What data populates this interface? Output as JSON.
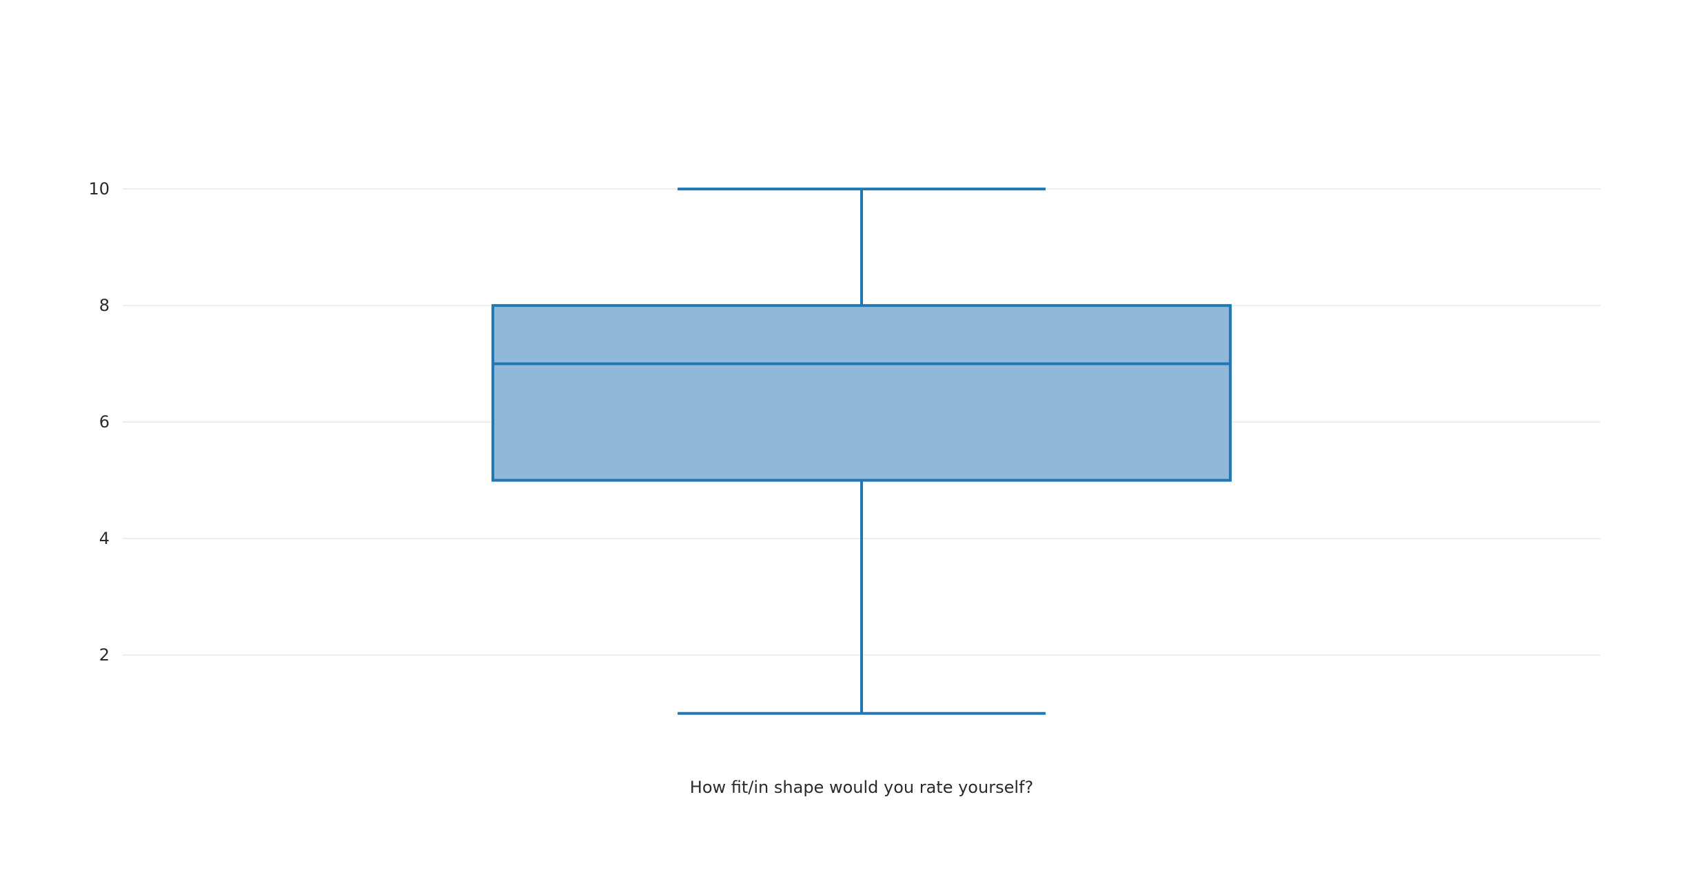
{
  "chart_data": {
    "type": "box",
    "title": "",
    "xlabel": "",
    "ylabel": "",
    "categories": [
      "How fit/in shape would you rate yourself?"
    ],
    "series": [
      {
        "category": "How fit/in shape would you rate yourself?",
        "min": 1,
        "q1": 5,
        "median": 7,
        "q3": 8,
        "max": 10
      }
    ],
    "ylim": [
      0.05,
      11.35
    ],
    "yticks": [
      2,
      4,
      6,
      8,
      10
    ],
    "ytick_labels": [
      "2",
      "4",
      "6",
      "8",
      "10"
    ],
    "grid": true,
    "legend": "none",
    "colors": {
      "box_line": "#1f77b4",
      "box_fill": "#8fb8d9",
      "grid": "#e9e9e9",
      "text": "#2a2a2a"
    }
  }
}
